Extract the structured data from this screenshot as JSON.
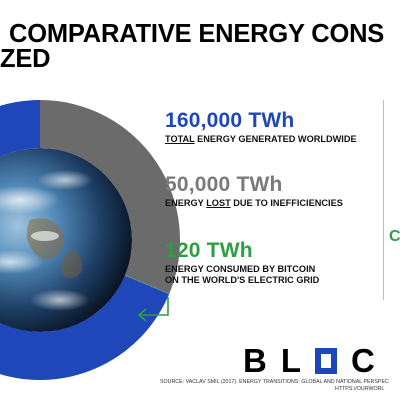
{
  "title": {
    "line1": "COMPARATIVE ENERGY CONS",
    "line2": "ZED"
  },
  "stats": {
    "total": {
      "value": "160,000 TWh",
      "desc_prefix": "TOTAL",
      "desc_rest": " ENERGY GENERATED WORLDWIDE",
      "color": "#1f47ba"
    },
    "lost": {
      "value": "50,000 TWh",
      "desc_pre": "ENERGY ",
      "desc_emph": "LOST",
      "desc_post": " DUE TO INEFFICIENCIES",
      "color": "#7a7a7a"
    },
    "bitcoin": {
      "value": "120 TWh",
      "desc_line1": "ENERGY CONSUMED BY BITCOIN",
      "desc_line2": "ON THE WORLD'S ELECTRIC GRID",
      "color": "#2e9e45"
    }
  },
  "side_letter": "C",
  "logo": {
    "left": "BL",
    "right": "C"
  },
  "source": {
    "line1": "SOURCE: VACLAV SMIL (2017). ENERGY TRANSITIONS: GLOBAL AND NATIONAL PERSPEC",
    "line2": "HTTPS://OURWORL"
  },
  "chart_data": {
    "type": "pie",
    "variant": "donut",
    "total": 160000,
    "unit": "TWh",
    "slices": [
      {
        "label": "lost",
        "value": 50000,
        "color": "#6b6b6b"
      },
      {
        "label": "bitcoin",
        "value": 120,
        "color": "#2e9e45"
      },
      {
        "label": "remaining",
        "value": 109880,
        "color": "#1f47ba"
      }
    ],
    "center_image": "earth-globe"
  }
}
